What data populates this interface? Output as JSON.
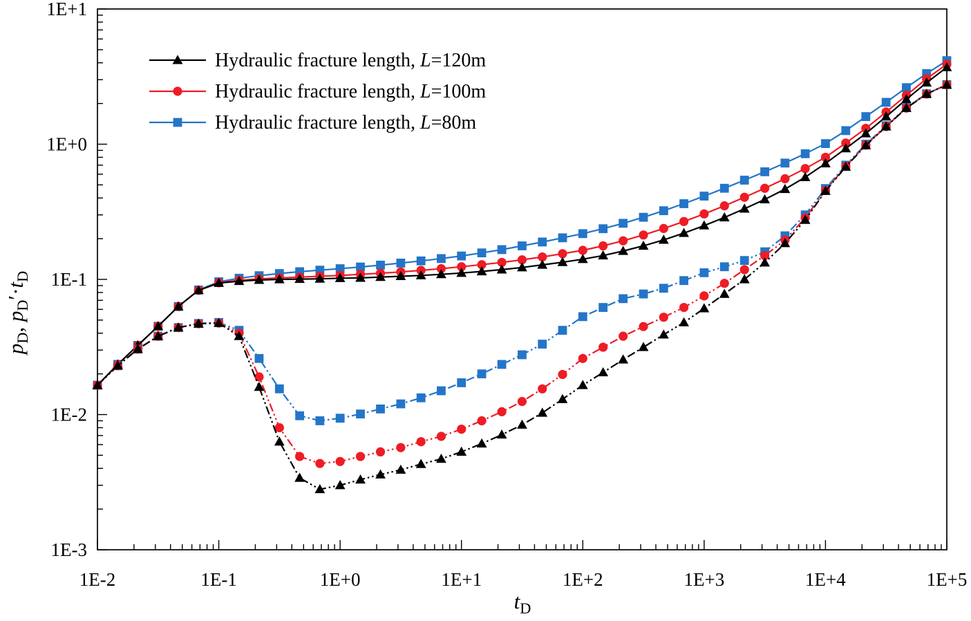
{
  "figure": {
    "background": "#ffffff",
    "text_color": "#000000"
  },
  "chart_data": {
    "type": "line",
    "scale": "log-log",
    "grid": false,
    "xlim": [
      0.01,
      100000
    ],
    "ylim": [
      0.001,
      10
    ],
    "xlabel_parts": [
      [
        "t",
        "i"
      ],
      [
        "D",
        "s"
      ]
    ],
    "ylabel_parts": [
      [
        "p",
        "i"
      ],
      [
        "D",
        "s"
      ],
      [
        ", ",
        "n"
      ],
      [
        "p",
        "i"
      ],
      [
        "D",
        "s"
      ],
      [
        "′",
        "n"
      ],
      [
        "·",
        "n"
      ],
      [
        "t",
        "i"
      ],
      [
        "D",
        "s"
      ]
    ],
    "x_ticks": [
      {
        "v": 0.01,
        "label": "1E-2"
      },
      {
        "v": 0.1,
        "label": "1E-1"
      },
      {
        "v": 1,
        "label": "1E+0"
      },
      {
        "v": 10,
        "label": "1E+1"
      },
      {
        "v": 100,
        "label": "1E+2"
      },
      {
        "v": 1000,
        "label": "1E+3"
      },
      {
        "v": 10000,
        "label": "1E+4"
      },
      {
        "v": 100000,
        "label": "1E+5"
      }
    ],
    "y_ticks": [
      {
        "v": 0.001,
        "label": "1E-3"
      },
      {
        "v": 0.01,
        "label": "1E-2"
      },
      {
        "v": 0.1,
        "label": "1E-1"
      },
      {
        "v": 1,
        "label": "1E+0"
      },
      {
        "v": 10,
        "label": "1E+1"
      }
    ],
    "legend": {
      "position": "top-left",
      "entries": [
        {
          "marker": "triangle",
          "color": "#000000",
          "label_parts": [
            [
              "Hydraulic fracture length, ",
              "n"
            ],
            [
              "L",
              "i"
            ],
            [
              "=120m",
              "n"
            ]
          ]
        },
        {
          "marker": "circle",
          "color": "#EE1C25",
          "label_parts": [
            [
              "Hydraulic fracture length, ",
              "n"
            ],
            [
              "L",
              "i"
            ],
            [
              "=100m",
              "n"
            ]
          ]
        },
        {
          "marker": "square",
          "color": "#2475C8",
          "label_parts": [
            [
              "Hydraulic fracture length, ",
              "n"
            ],
            [
              "L",
              "i"
            ],
            [
              "=80m",
              "n"
            ]
          ]
        }
      ]
    },
    "x": [
      0.01,
      0.0147,
      0.0215,
      0.0316,
      0.0464,
      0.0681,
      0.1,
      0.147,
      0.215,
      0.316,
      0.464,
      0.681,
      1,
      1.47,
      2.15,
      3.16,
      4.64,
      6.81,
      10,
      14.7,
      21.5,
      31.6,
      46.4,
      68.1,
      100,
      147,
      215,
      316,
      464,
      681,
      1000,
      1470,
      2150,
      3160,
      4640,
      6810,
      10000,
      14700,
      21500,
      31600,
      46400,
      68100,
      100000
    ],
    "series": [
      {
        "id": "pd-l80",
        "quantity": "pD",
        "fracture_length_m": 80,
        "label": "Hydraulic fracture length, L=80m (pressure)",
        "color": "#2475C8",
        "marker": "square",
        "line": "solid",
        "values": [
          0.0165,
          0.0235,
          0.0325,
          0.045,
          0.063,
          0.0835,
          0.096,
          0.102,
          0.1065,
          0.1105,
          0.114,
          0.117,
          0.12,
          0.1235,
          0.1275,
          0.132,
          0.137,
          0.1425,
          0.149,
          0.157,
          0.166,
          0.177,
          0.189,
          0.203,
          0.218,
          0.237,
          0.26,
          0.288,
          0.322,
          0.363,
          0.413,
          0.472,
          0.542,
          0.625,
          0.725,
          0.85,
          1.01,
          1.26,
          1.6,
          2.04,
          2.62,
          3.33,
          4.15
        ]
      },
      {
        "id": "pd-l100",
        "quantity": "pD",
        "fracture_length_m": 100,
        "label": "Hydraulic fracture length, L=100m (pressure)",
        "color": "#EE1C25",
        "marker": "circle",
        "line": "solid",
        "values": [
          0.0165,
          0.0235,
          0.0325,
          0.045,
          0.063,
          0.083,
          0.0945,
          0.0985,
          0.101,
          0.1025,
          0.104,
          0.1055,
          0.107,
          0.109,
          0.111,
          0.1135,
          0.1165,
          0.12,
          0.124,
          0.1285,
          0.1335,
          0.1395,
          0.1465,
          0.155,
          0.164,
          0.177,
          0.193,
          0.213,
          0.238,
          0.268,
          0.305,
          0.35,
          0.405,
          0.472,
          0.555,
          0.66,
          0.8,
          1.02,
          1.31,
          1.73,
          2.3,
          3.05,
          3.9
        ]
      },
      {
        "id": "pd-l120",
        "quantity": "pD",
        "fracture_length_m": 120,
        "label": "Hydraulic fracture length, L=120m (pressure)",
        "color": "#000000",
        "marker": "triangle",
        "line": "solid",
        "values": [
          0.0165,
          0.0235,
          0.0325,
          0.045,
          0.063,
          0.083,
          0.094,
          0.097,
          0.099,
          0.1,
          0.1005,
          0.101,
          0.102,
          0.1025,
          0.104,
          0.1055,
          0.107,
          0.109,
          0.1115,
          0.1145,
          0.118,
          0.1225,
          0.128,
          0.134,
          0.141,
          0.15,
          0.162,
          0.177,
          0.196,
          0.22,
          0.25,
          0.287,
          0.333,
          0.39,
          0.465,
          0.57,
          0.72,
          0.93,
          1.2,
          1.6,
          2.15,
          2.85,
          3.7
        ]
      },
      {
        "id": "deriv-l80",
        "quantity": "pD'·tD",
        "fracture_length_m": 80,
        "label": "Hydraulic fracture length, L=80m (derivative)",
        "color": "#2475C8",
        "marker": "square",
        "line": "dashdotdot",
        "values": [
          0.0165,
          0.023,
          0.0305,
          0.038,
          0.044,
          0.0472,
          0.048,
          0.042,
          0.026,
          0.0155,
          0.0098,
          0.009,
          0.0094,
          0.0101,
          0.011,
          0.012,
          0.0133,
          0.015,
          0.0172,
          0.02,
          0.0235,
          0.0277,
          0.0332,
          0.042,
          0.053,
          0.062,
          0.072,
          0.078,
          0.086,
          0.098,
          0.112,
          0.124,
          0.138,
          0.16,
          0.21,
          0.3,
          0.47,
          0.7,
          1.0,
          1.37,
          1.87,
          2.36,
          2.76
        ]
      },
      {
        "id": "deriv-l100",
        "quantity": "pD'·tD",
        "fracture_length_m": 100,
        "label": "Hydraulic fracture length, L=100m (derivative)",
        "color": "#EE1C25",
        "marker": "circle",
        "line": "dashdotdot",
        "values": [
          0.0165,
          0.023,
          0.0305,
          0.038,
          0.044,
          0.047,
          0.0475,
          0.04,
          0.019,
          0.008,
          0.0049,
          0.00435,
          0.0045,
          0.0049,
          0.0053,
          0.0057,
          0.0063,
          0.0069,
          0.0078,
          0.009,
          0.0105,
          0.0125,
          0.0155,
          0.0198,
          0.026,
          0.0315,
          0.038,
          0.0448,
          0.0525,
          0.062,
          0.0755,
          0.0935,
          0.118,
          0.15,
          0.195,
          0.285,
          0.455,
          0.685,
          0.985,
          1.35,
          1.85,
          2.35,
          2.75
        ]
      },
      {
        "id": "deriv-l120",
        "quantity": "pD'·tD",
        "fracture_length_m": 120,
        "label": "Hydraulic fracture length, L=120m (derivative)",
        "color": "#000000",
        "marker": "triangle",
        "line": "dashdotdot",
        "values": [
          0.0165,
          0.023,
          0.0305,
          0.038,
          0.044,
          0.047,
          0.0475,
          0.038,
          0.016,
          0.0063,
          0.0034,
          0.0028,
          0.003,
          0.0033,
          0.0036,
          0.0039,
          0.0043,
          0.0047,
          0.0053,
          0.0061,
          0.0071,
          0.0084,
          0.0103,
          0.013,
          0.0165,
          0.0205,
          0.0255,
          0.0315,
          0.039,
          0.048,
          0.061,
          0.078,
          0.1,
          0.133,
          0.185,
          0.275,
          0.45,
          0.68,
          0.98,
          1.35,
          1.85,
          2.35,
          2.75
        ]
      }
    ]
  }
}
